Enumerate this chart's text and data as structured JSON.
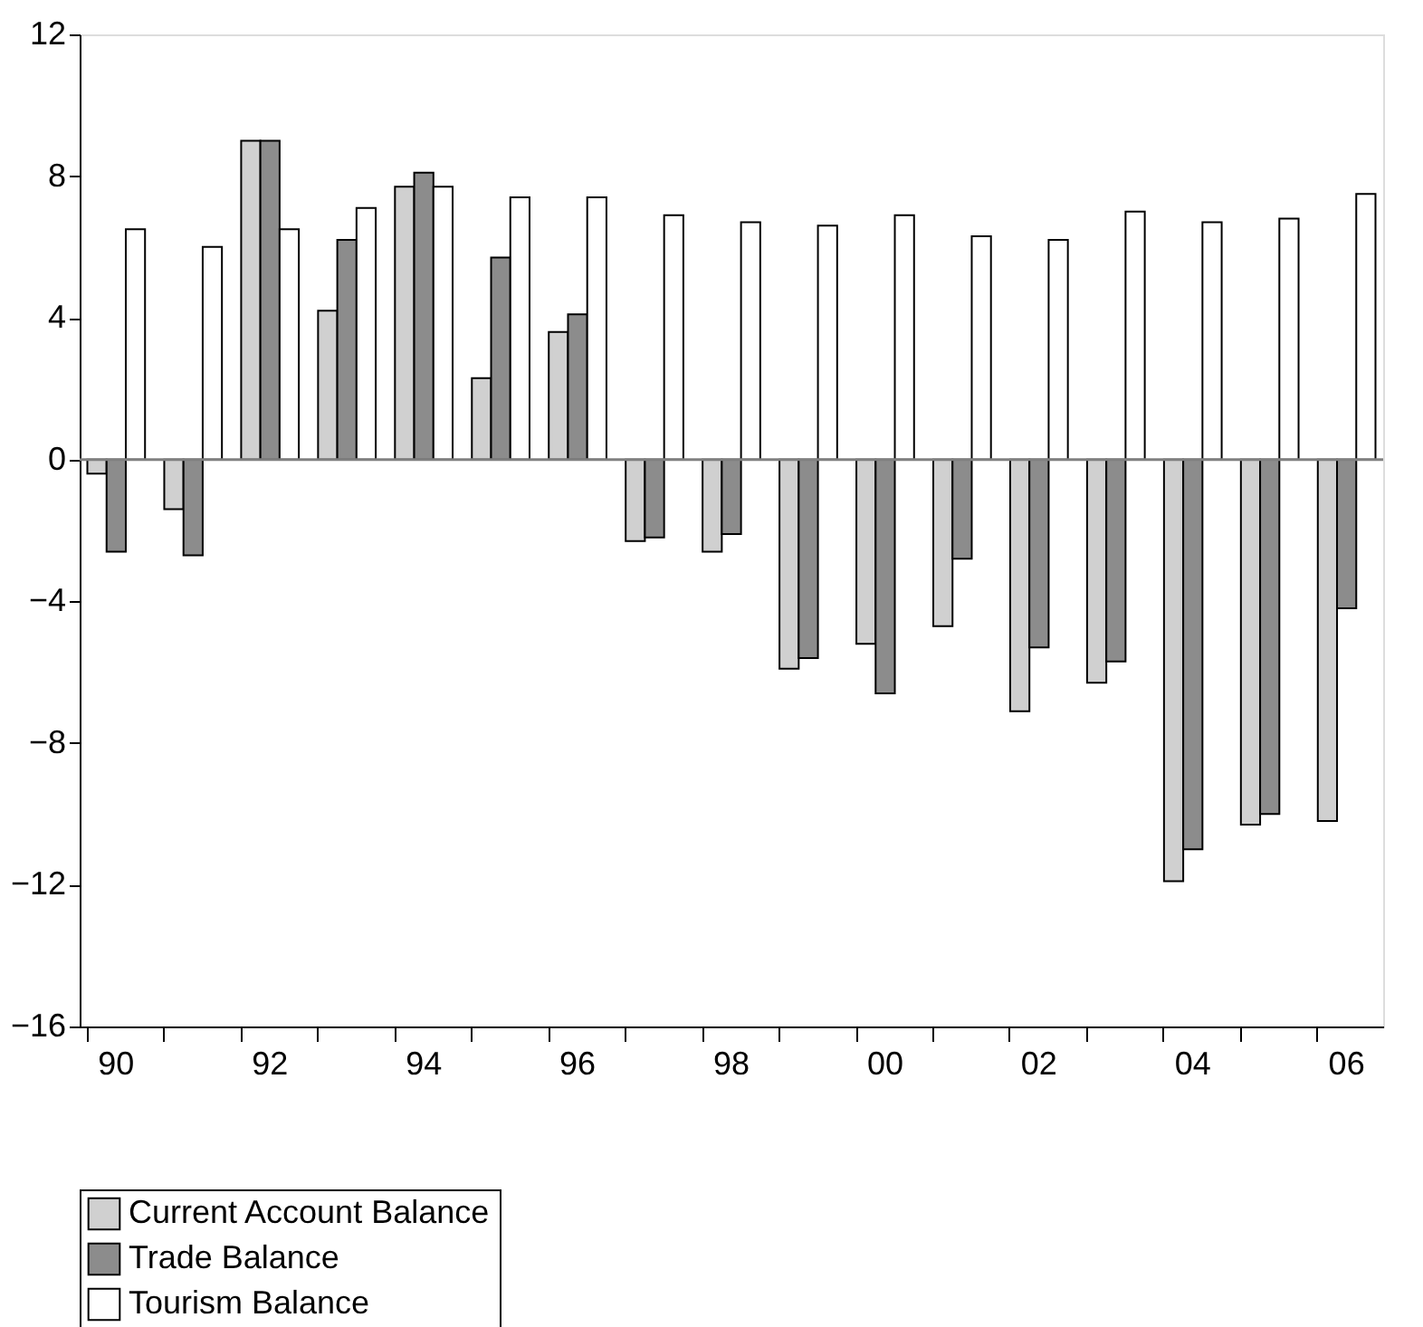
{
  "chart_data": {
    "type": "bar",
    "categories": [
      "90",
      null,
      "92",
      null,
      "94",
      null,
      "96",
      null,
      "98",
      null,
      "00",
      null,
      "02",
      null,
      "04",
      null,
      "06"
    ],
    "series": [
      {
        "name": "Current Account Balance",
        "color": "#d0d0d0",
        "values": [
          -0.4,
          -1.4,
          9.0,
          4.2,
          7.7,
          2.3,
          3.6,
          -2.3,
          -2.6,
          -5.9,
          -5.2,
          -4.7,
          -7.1,
          -6.3,
          -11.9,
          -10.3,
          -10.2
        ]
      },
      {
        "name": "Trade Balance",
        "color": "#8c8c8c",
        "values": [
          -2.6,
          -2.7,
          9.0,
          6.2,
          8.1,
          5.7,
          4.1,
          -2.2,
          -2.1,
          -5.6,
          -6.6,
          -2.8,
          -5.3,
          -5.7,
          -11.0,
          -10.0,
          -4.2
        ]
      },
      {
        "name": "Tourism Balance",
        "color": "#ffffff",
        "values": [
          6.5,
          6.0,
          6.5,
          7.1,
          7.7,
          7.4,
          7.4,
          6.9,
          6.7,
          6.6,
          6.9,
          6.3,
          6.2,
          7.0,
          6.7,
          6.8,
          7.5
        ]
      }
    ],
    "ylim": [
      -16,
      12
    ],
    "yticks": [
      -16,
      -12,
      -8,
      -4,
      0,
      4,
      8,
      12
    ],
    "ref_lines": [
      {
        "axis": "y",
        "value": 0,
        "color": "#808080"
      }
    ],
    "grid": false,
    "legend": "bottom"
  }
}
